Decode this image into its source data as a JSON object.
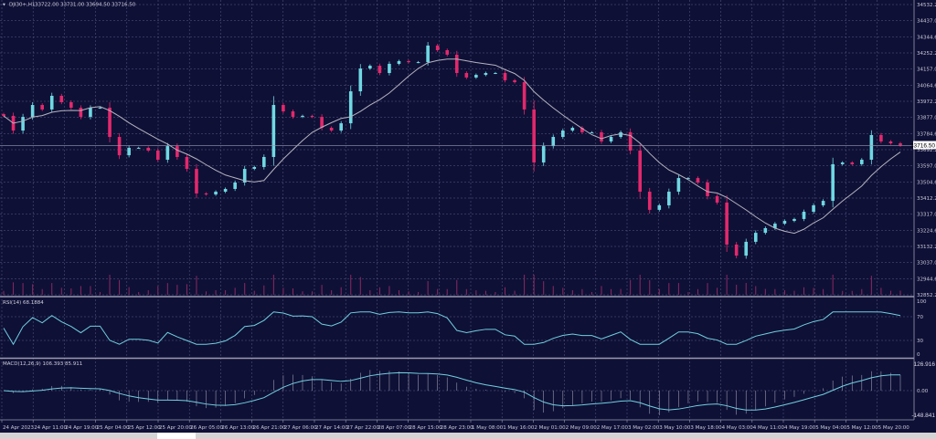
{
  "header": {
    "symbol": "DJI30+,H1",
    "ohlc": "33722.00 33731.00 33694.50 33716.50"
  },
  "rsi_panel": {
    "label": "RSI(14) 68.1884",
    "axis": [
      "100",
      "70",
      "30",
      "0"
    ]
  },
  "macd_panel": {
    "label": "MACD(12,26,9) 106.393 85.911",
    "axis": [
      "126.916",
      "0.00",
      "-148.841"
    ]
  },
  "colors": {
    "background": "#0f1036",
    "bull": "#6fd8e2",
    "bear": "#e3286c",
    "ma": "#b4b4c0",
    "grid": "#5c5c86",
    "indicator": "#6fd0e0"
  },
  "chart_data": {
    "type": "candlestick",
    "symbol": "DJI30+",
    "timeframe": "H1",
    "current_price": "33716.50",
    "ylim": [
      32852.2,
      34532.2
    ],
    "y_ticks": [
      "34532.20",
      "34437.00",
      "34344.60",
      "34252.20",
      "34157.00",
      "34064.60",
      "33972.20",
      "33877.00",
      "33784.60",
      "33692.20",
      "33597.00",
      "33504.60",
      "33412.20",
      "33317.00",
      "33224.60",
      "33132.20",
      "33037.00",
      "32944.60",
      "32852.20"
    ],
    "x_ticks": [
      "24 Apr 2023",
      "24 Apr 11:00",
      "24 Apr 19:00",
      "25 Apr 04:00",
      "25 Apr 12:00",
      "25 Apr 20:00",
      "26 Apr 05:00",
      "26 Apr 13:00",
      "26 Apr 21:00",
      "27 Apr 06:00",
      "27 Apr 14:00",
      "27 Apr 22:00",
      "28 Apr 07:00",
      "28 Apr 15:00",
      "28 Apr 23:00",
      "1 May 08:00",
      "1 May 16:00",
      "2 May 01:00",
      "2 May 09:00",
      "2 May 17:00",
      "3 May 02:00",
      "3 May 10:00",
      "3 May 18:00",
      "4 May 03:00",
      "4 May 11:00",
      "4 May 19:00",
      "5 May 04:00",
      "5 May 12:00",
      "5 May 20:00"
    ],
    "closes": [
      33888,
      33803,
      33882,
      33951,
      33925,
      34004,
      33967,
      33935,
      33882,
      33935,
      33935,
      33766,
      33660,
      33703,
      33703,
      33687,
      33634,
      33713,
      33650,
      33581,
      33439,
      33433,
      33449,
      33465,
      33502,
      33581,
      33592,
      33650,
      33951,
      33914,
      33882,
      33888,
      33882,
      33819,
      33803,
      33845,
      34030,
      34162,
      34178,
      34136,
      34189,
      34205,
      34199,
      34199,
      34295,
      34268,
      34242,
      34136,
      34110,
      34125,
      34136,
      34136,
      34094,
      34083,
      33925,
      33618,
      33713,
      33766,
      33803,
      33819,
      33793,
      33793,
      33740,
      33766,
      33793,
      33687,
      33449,
      33344,
      33370,
      33449,
      33528,
      33528,
      33502,
      33423,
      33386,
      33143,
      33079,
      33159,
      33211,
      33238,
      33264,
      33280,
      33291,
      33333,
      33370,
      33396,
      33608,
      33618,
      33608,
      33634,
      33777,
      33740,
      33729,
      33716.5
    ],
    "indicators": [
      "Moving Average",
      "Volume",
      "RSI(14)",
      "MACD(12,26,9)"
    ]
  }
}
